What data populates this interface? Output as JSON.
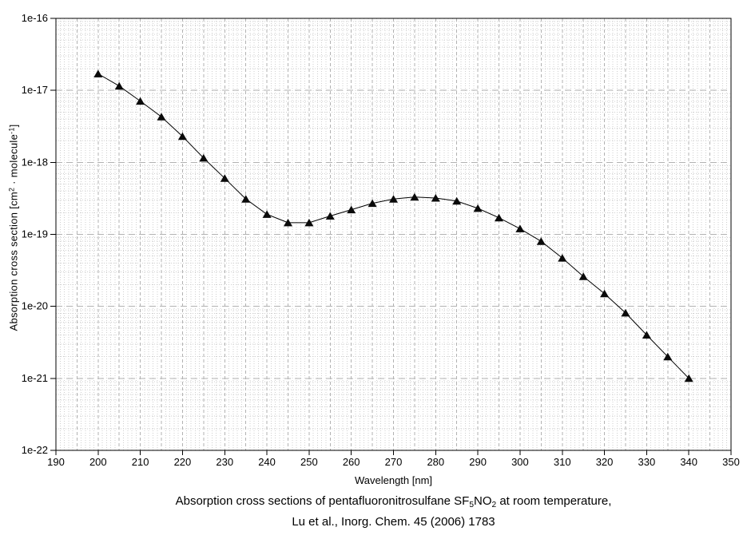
{
  "chart_data": {
    "type": "line",
    "caption_plain": "Absorption cross sections of pentafluoronitrosulfane SF5NO2 at room temperature, Lu et al., Inorg. Chem. 45 (2006) 1783",
    "caption_line1_segments": [
      {
        "text": "Absorption cross sections of pentafluoronitrosulfane SF"
      },
      {
        "text": "5",
        "style": "sub"
      },
      {
        "text": "NO"
      },
      {
        "text": "2",
        "style": "sub"
      },
      {
        "text": " at room temperature,"
      }
    ],
    "caption_line2": "Lu et al., Inorg. Chem. 45 (2006) 1783",
    "xlabel": "Wavelength [nm]",
    "ylabel_segments": [
      {
        "text": "Absorption cross section [cm"
      },
      {
        "text": "2",
        "style": "sup"
      },
      {
        "text": " · molecule"
      },
      {
        "text": "-1",
        "style": "sup"
      },
      {
        "text": "]"
      }
    ],
    "xlim": [
      190,
      350
    ],
    "ylim": [
      1e-22,
      1e-16
    ],
    "x_ticks": [
      190,
      200,
      210,
      220,
      230,
      240,
      250,
      260,
      270,
      280,
      290,
      300,
      310,
      320,
      330,
      340,
      350
    ],
    "y_tick_labels": [
      "1e-16",
      "1e-17",
      "1e-18",
      "1e-19",
      "1e-20",
      "1e-21",
      "1e-22"
    ],
    "grid": {
      "x_major_step_nm": 5,
      "x_minor_step_nm": 1,
      "y_major": "decades",
      "y_minor": "log-2-to-9"
    },
    "series": [
      {
        "name": "SF5NO2 absorption cross section",
        "marker": "filled-triangle",
        "color": "#0a0a0a",
        "x": [
          200,
          205,
          210,
          215,
          220,
          225,
          230,
          235,
          240,
          245,
          250,
          255,
          260,
          265,
          270,
          275,
          280,
          285,
          290,
          295,
          300,
          305,
          310,
          315,
          320,
          325,
          330,
          335,
          340
        ],
        "y": [
          1.7e-17,
          1.15e-17,
          7.1e-18,
          4.3e-18,
          2.3e-18,
          1.15e-18,
          6e-19,
          3.1e-19,
          1.9e-19,
          1.45e-19,
          1.45e-19,
          1.8e-19,
          2.2e-19,
          2.7e-19,
          3.1e-19,
          3.3e-19,
          3.2e-19,
          2.9e-19,
          2.3e-19,
          1.7e-19,
          1.2e-19,
          8e-20,
          4.7e-20,
          2.6e-20,
          1.5e-20,
          8.1e-21,
          4e-21,
          2e-21,
          1e-21
        ]
      }
    ],
    "colors": {
      "line": "#000000",
      "marker": "#0a0a0a",
      "grid_major": "#b2b2b2",
      "grid_minor": "#cfcfcf",
      "axis": "#000000",
      "text": "#000000",
      "background": "#ffffff"
    },
    "legend": "none"
  }
}
